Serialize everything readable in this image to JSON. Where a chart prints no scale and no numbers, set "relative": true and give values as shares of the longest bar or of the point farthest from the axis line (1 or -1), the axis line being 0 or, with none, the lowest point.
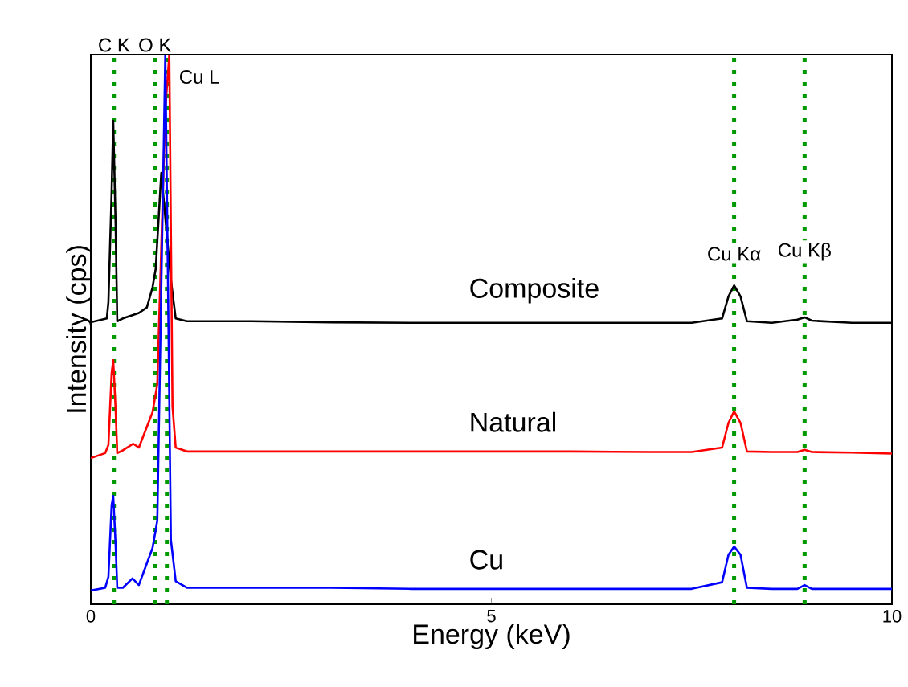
{
  "chart_data": {
    "type": "line",
    "relative": true,
    "xlabel": "Energy (keV)",
    "ylabel": "Intensity (cps)",
    "xlim": [
      0,
      10
    ],
    "xticks": [
      0,
      5,
      10
    ],
    "series": [
      {
        "name": "Composite",
        "color": "#000000",
        "x": [
          0,
          0.2,
          0.22,
          0.26,
          0.28,
          0.31,
          0.33,
          0.4,
          0.5,
          0.6,
          0.7,
          0.77,
          0.81,
          0.88,
          1.0,
          1.06,
          1.2,
          2,
          3,
          4,
          5,
          6,
          7,
          7.5,
          7.88,
          7.96,
          8.03,
          8.11,
          8.19,
          8.5,
          8.82,
          8.91,
          9.0,
          9.5,
          10
        ],
        "values": [
          0.513,
          0.52,
          0.55,
          0.75,
          0.88,
          0.69,
          0.515,
          0.52,
          0.525,
          0.53,
          0.54,
          0.576,
          0.61,
          0.785,
          0.59,
          0.52,
          0.515,
          0.515,
          0.513,
          0.512,
          0.512,
          0.512,
          0.512,
          0.512,
          0.52,
          0.56,
          0.58,
          0.56,
          0.515,
          0.512,
          0.518,
          0.522,
          0.516,
          0.512,
          0.512
        ]
      },
      {
        "name": "Natural",
        "color": "#ff0000",
        "x": [
          0,
          0.18,
          0.22,
          0.26,
          0.28,
          0.31,
          0.33,
          0.4,
          0.53,
          0.6,
          0.77,
          0.83,
          0.93,
          0.98,
          1.02,
          1.06,
          1.2,
          2,
          3,
          4,
          5,
          6,
          7,
          7.5,
          7.88,
          7.96,
          8.03,
          8.11,
          8.19,
          8.5,
          8.82,
          8.91,
          9.0,
          9.5,
          10
        ],
        "values": [
          0.266,
          0.275,
          0.29,
          0.42,
          0.444,
          0.354,
          0.275,
          0.28,
          0.292,
          0.285,
          0.349,
          0.4,
          0.9,
          1,
          0.36,
          0.285,
          0.278,
          0.278,
          0.278,
          0.278,
          0.278,
          0.278,
          0.277,
          0.277,
          0.285,
          0.33,
          0.351,
          0.33,
          0.278,
          0.277,
          0.277,
          0.281,
          0.277,
          0.276,
          0.274
        ]
      },
      {
        "name": "Cu",
        "color": "#0000ff",
        "x": [
          0,
          0.18,
          0.22,
          0.26,
          0.28,
          0.31,
          0.33,
          0.4,
          0.52,
          0.6,
          0.77,
          0.83,
          0.93,
          0.97,
          1.0,
          1.06,
          1.2,
          2,
          3,
          4,
          5,
          6,
          7,
          7.5,
          7.88,
          7.96,
          8.03,
          8.11,
          8.19,
          8.5,
          8.82,
          8.91,
          9.0,
          9.5,
          10
        ],
        "values": [
          0.025,
          0.03,
          0.05,
          0.18,
          0.197,
          0.108,
          0.03,
          0.03,
          0.047,
          0.035,
          0.102,
          0.152,
          1,
          0.5,
          0.117,
          0.042,
          0.03,
          0.03,
          0.03,
          0.028,
          0.028,
          0.028,
          0.028,
          0.028,
          0.04,
          0.09,
          0.105,
          0.09,
          0.03,
          0.028,
          0.028,
          0.035,
          0.028,
          0.028,
          0.028
        ]
      }
    ],
    "ref_lines": [
      {
        "axis": "x",
        "value": 0.29,
        "color": "#009900",
        "line_style": "dotted"
      },
      {
        "axis": "x",
        "value": 0.8,
        "color": "#009900",
        "line_style": "dotted"
      },
      {
        "axis": "x",
        "value": 0.95,
        "color": "#009900",
        "line_style": "dotted",
        "label": "Cu L"
      },
      {
        "axis": "x",
        "value": 8.03,
        "color": "#009900",
        "line_style": "dotted"
      },
      {
        "axis": "x",
        "value": 8.91,
        "color": "#009900",
        "line_style": "dotted"
      }
    ],
    "annotations": [
      {
        "text": "C K",
        "x": 0.29,
        "y": 1
      },
      {
        "text": "O K",
        "x": 0.8,
        "y": 1
      },
      {
        "text": "Cu Kα",
        "x": 8.03,
        "y": 0.62
      },
      {
        "text": "Cu Kβ",
        "x": 8.91,
        "y": 0.62
      }
    ]
  }
}
